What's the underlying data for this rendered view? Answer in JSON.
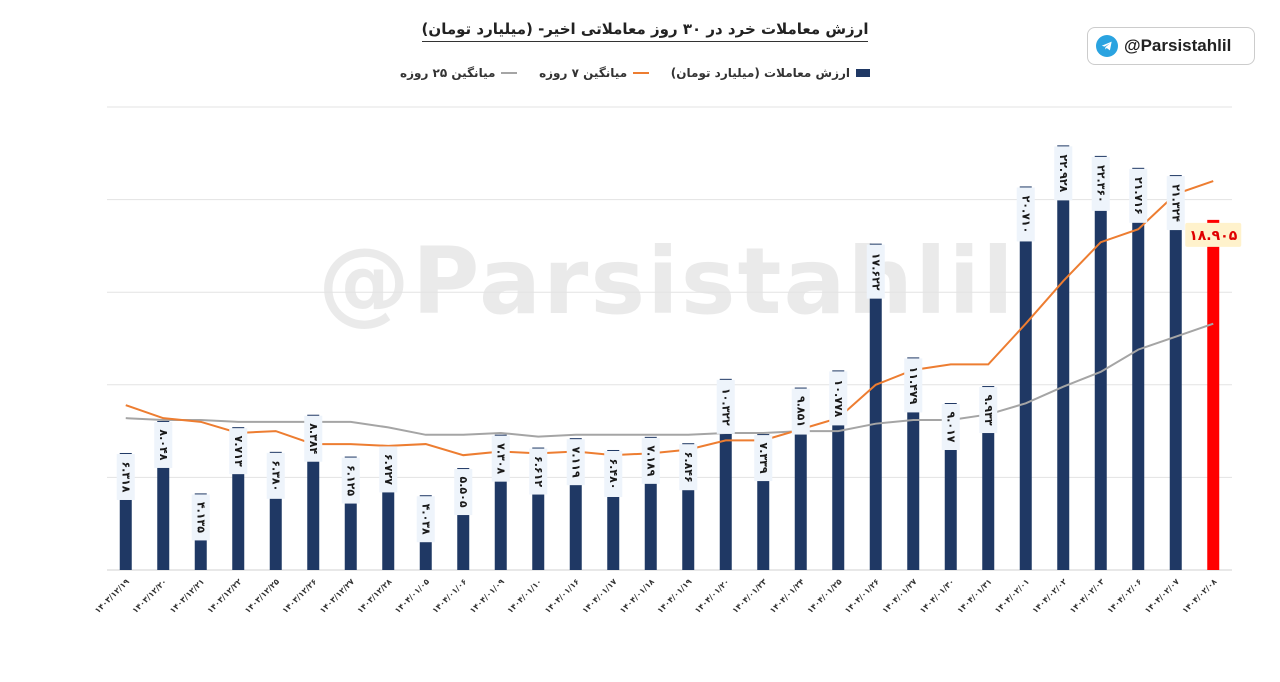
{
  "title": "ارزش معاملات خرد در ۳۰ روز معاملاتی اخیر- (میلیارد تومان)",
  "brand": {
    "handle": "@Parsistahlil",
    "icon": "telegram-icon"
  },
  "watermark": "@Parsistahlil",
  "legend": [
    {
      "label": "ارزش معاملات (میلیارد تومان)",
      "kind": "bar",
      "color": "#1f3864"
    },
    {
      "label": "میانگین ۷ روزه",
      "kind": "line",
      "color": "#ed7d31"
    },
    {
      "label": "میانگین ۲۵ روزه",
      "kind": "line",
      "color": "#a5a5a5"
    }
  ],
  "chart_data": {
    "type": "bar",
    "title": "ارزش معاملات خرد در ۳۰ روز معاملاتی اخیر- (میلیارد تومان)",
    "categories": [
      "۱۴۰۳/۱۲/۱۹",
      "۱۴۰۳/۱۲/۲۰",
      "۱۴۰۳/۱۲/۲۱",
      "۱۴۰۳/۱۲/۲۲",
      "۱۴۰۳/۱۲/۲۵",
      "۱۴۰۳/۱۲/۲۶",
      "۱۴۰۳/۱۲/۲۷",
      "۱۴۰۳/۱۲/۲۸",
      "۱۴۰۴/۰۱/۰۵",
      "۱۴۰۴/۰۱/۰۶",
      "۱۴۰۴/۰۱/۰۹",
      "۱۴۰۴/۰۱/۱۰",
      "۱۴۰۴/۰۱/۱۶",
      "۱۴۰۴/۰۱/۱۷",
      "۱۴۰۴/۰۱/۱۸",
      "۱۴۰۴/۰۱/۱۹",
      "۱۴۰۴/۰۱/۲۰",
      "۱۴۰۴/۰۱/۲۳",
      "۱۴۰۴/۰۱/۲۴",
      "۱۴۰۴/۰۱/۲۵",
      "۱۴۰۴/۰۱/۲۶",
      "۱۴۰۴/۰۱/۲۷",
      "۱۴۰۴/۰۱/۳۰",
      "۱۴۰۴/۰۱/۳۱",
      "۱۴۰۴/۰۲/۰۱",
      "۱۴۰۴/۰۲/۰۲",
      "۱۴۰۴/۰۲/۰۳",
      "۱۴۰۴/۰۲/۰۶",
      "۱۴۰۴/۰۲/۰۷",
      "۱۴۰۴/۰۲/۰۸"
    ],
    "series": [
      {
        "name": "ارزش معاملات (میلیارد تومان)",
        "type": "bar",
        "color": "#1f3864",
        "highlight_last_color": "#ff0000",
        "values": [
          6318,
          8048,
          4135,
          7713,
          6380,
          8384,
          6125,
          6727,
          4038,
          5505,
          7308,
          6612,
          7119,
          6480,
          7189,
          6846,
          10322,
          7339,
          9851,
          10778,
          17622,
          11479,
          9017,
          9933,
          20710,
          22928,
          22360,
          21716,
          21324,
          18905
        ],
        "labels": [
          "۶.۳۱۸",
          "۸.۰۴۸",
          "۴.۱۳۵",
          "۷.۷۱۳",
          "۶.۳۸۰",
          "۸.۳۸۴",
          "۶.۱۲۵",
          "۶.۷۲۷",
          "۴.۰۳۸",
          "۵.۵۰۵",
          "۷.۳۰۸",
          "۶.۶۱۲",
          "۷.۱۱۹",
          "۶.۴۸۰",
          "۷.۱۸۹",
          "۶.۸۴۶",
          "۱۰.۳۲۲",
          "۷.۳۳۹",
          "۹.۸۵۱",
          "۱۰.۷۷۸",
          "۱۷.۶۲۲",
          "۱۱.۴۷۹",
          "۹.۰۱۷",
          "۹.۹۳۳",
          "۲۰.۷۱۰",
          "۲۲.۹۲۸",
          "۲۲.۳۶۰",
          "۲۱.۷۱۶",
          "۲۱.۳۲۴",
          "۱۸.۹۰۵"
        ]
      },
      {
        "name": "میانگین ۷ روزه",
        "type": "line",
        "color": "#ed7d31",
        "values": [
          8900,
          8200,
          8000,
          7400,
          7500,
          6800,
          6800,
          6700,
          6800,
          6200,
          6400,
          6300,
          6400,
          6200,
          6300,
          6500,
          7000,
          7000,
          7600,
          8200,
          10000,
          10800,
          11100,
          11100,
          13300,
          15600,
          17700,
          18400,
          20300,
          21000
        ]
      },
      {
        "name": "میانگین ۲۵ روزه",
        "type": "line",
        "color": "#a5a5a5",
        "values": [
          8200,
          8100,
          8100,
          8000,
          8000,
          8000,
          8000,
          7700,
          7300,
          7300,
          7400,
          7200,
          7300,
          7300,
          7300,
          7300,
          7400,
          7400,
          7500,
          7500,
          7900,
          8100,
          8100,
          8400,
          9000,
          9900,
          10700,
          11900,
          12600,
          13300
        ]
      }
    ],
    "ylim": [
      0,
      25000
    ],
    "grid": true,
    "legend_position": "top"
  }
}
